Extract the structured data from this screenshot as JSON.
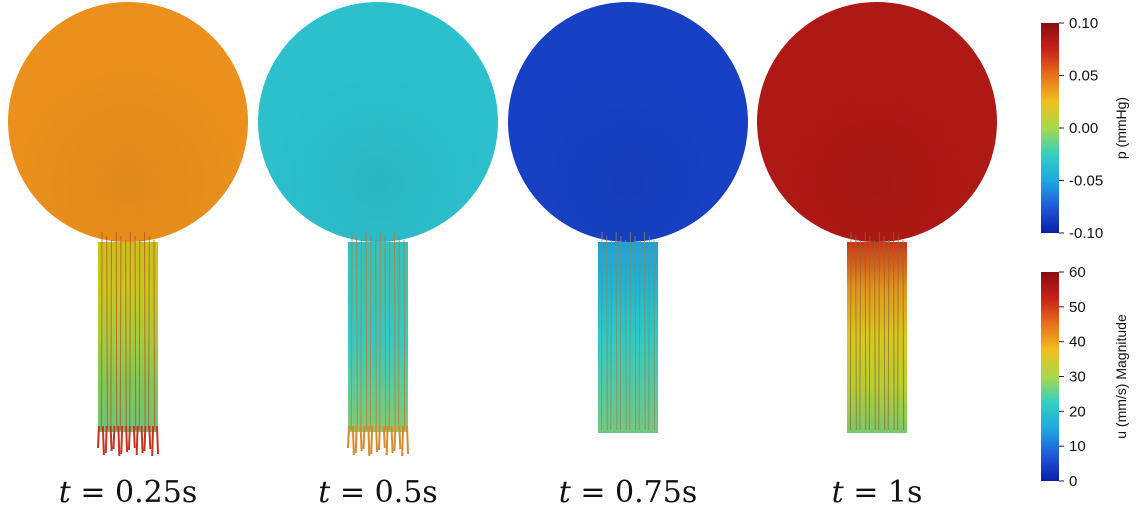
{
  "panels": [
    {
      "time_label": "0.25s",
      "sphere_pressure": 0.04,
      "tube_colors": [
        "#c9c21c",
        "#c8c81e",
        "#a8cc3c",
        "#80c858",
        "#6fc27a"
      ],
      "tip_color": "#c8321e",
      "arrow_color": "#b4502a",
      "bottom_style": "jet"
    },
    {
      "time_label": "0.5s",
      "sphere_pressure": -0.035,
      "tube_colors": [
        "#34c3c2",
        "#3ac3b8",
        "#34c8c6",
        "#58cc9e",
        "#8ac86e"
      ],
      "tip_color": "#d68a2c",
      "arrow_color": "#c0782e",
      "bottom_style": "jet"
    },
    {
      "time_label": "0.75s",
      "sphere_pressure": -0.085,
      "tube_colors": [
        "#1ea0d6",
        "#22b6d2",
        "#2ccac8",
        "#52c9a6",
        "#74c882"
      ],
      "tip_color": "#6cc680",
      "arrow_color": "#8a8a5a",
      "bottom_style": "flat"
    },
    {
      "time_label": "1s",
      "sphere_pressure": 0.085,
      "tube_colors": [
        "#cc3418",
        "#e4961c",
        "#d8c81e",
        "#b8ce30",
        "#7cc86a"
      ],
      "tip_color": "#76c874",
      "arrow_color": "#8a6a3a",
      "bottom_style": "flat"
    }
  ],
  "colorbars": [
    {
      "variable": "p",
      "title": "p (mmHg)",
      "min": -0.1,
      "max": 0.1,
      "ticks": [
        "0.10",
        "0.05",
        "0.00",
        "-0.05",
        "-0.10"
      ]
    },
    {
      "variable": "u",
      "title": "u (mm/s) Magnitude",
      "min": 0,
      "max": 60,
      "ticks": [
        "60",
        "50",
        "40",
        "30",
        "20",
        "10",
        "0"
      ]
    }
  ],
  "colors": {
    "p_colormap": [
      "#0a1ea8",
      "#1f58d8",
      "#1fa8e0",
      "#34d0c0",
      "#a8d84a",
      "#f0c020",
      "#e8701a",
      "#c8201a",
      "#8a0e0e"
    ]
  }
}
